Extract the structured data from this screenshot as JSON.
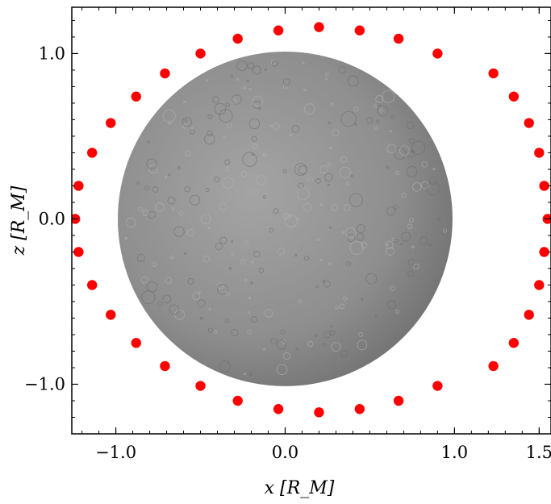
{
  "chart_data": {
    "type": "scatter",
    "title": "",
    "xlabel": "x [R_M]",
    "ylabel": "z [R_M]",
    "xlim": [
      -1.26,
      1.57
    ],
    "ylim": [
      -1.3,
      1.28
    ],
    "xticks": [
      {
        "value": -1.0,
        "label": "−1.0"
      },
      {
        "value": 0.0,
        "label": "0.0"
      },
      {
        "value": 1.0,
        "label": "1.0"
      },
      {
        "value": 1.5,
        "label": "1.5"
      }
    ],
    "yticks": [
      {
        "value": 1.0,
        "label": "1.0"
      },
      {
        "value": 0.0,
        "label": "0.0"
      },
      {
        "value": -1.0,
        "label": "−1.0"
      }
    ],
    "grid": false,
    "planet": {
      "center": [
        0.0,
        0.0
      ],
      "radius": 1.0,
      "color": "#8c8c8c"
    },
    "marker_color": "#ff0000",
    "points": [
      [
        1.55,
        0.0
      ],
      [
        1.53,
        0.2
      ],
      [
        1.5,
        0.4
      ],
      [
        1.44,
        0.58
      ],
      [
        1.35,
        0.74
      ],
      [
        1.23,
        0.88
      ],
      [
        0.9,
        1.0
      ],
      [
        0.67,
        1.09
      ],
      [
        0.44,
        1.14
      ],
      [
        0.2,
        1.16
      ],
      [
        -0.04,
        1.14
      ],
      [
        -0.28,
        1.09
      ],
      [
        -0.5,
        1.0
      ],
      [
        -0.71,
        0.88
      ],
      [
        -0.88,
        0.74
      ],
      [
        -1.03,
        0.58
      ],
      [
        -1.14,
        0.4
      ],
      [
        -1.22,
        0.2
      ],
      [
        -1.24,
        0.0
      ],
      [
        -1.22,
        -0.2
      ],
      [
        -1.14,
        -0.4
      ],
      [
        -1.03,
        -0.58
      ],
      [
        -0.88,
        -0.75
      ],
      [
        -0.71,
        -0.89
      ],
      [
        -0.5,
        -1.01
      ],
      [
        -0.28,
        -1.1
      ],
      [
        -0.04,
        -1.15
      ],
      [
        0.2,
        -1.17
      ],
      [
        0.44,
        -1.15
      ],
      [
        0.67,
        -1.1
      ],
      [
        0.9,
        -1.01
      ],
      [
        1.23,
        -0.89
      ],
      [
        1.35,
        -0.75
      ],
      [
        1.44,
        -0.58
      ],
      [
        1.5,
        -0.4
      ],
      [
        1.53,
        -0.2
      ]
    ]
  }
}
